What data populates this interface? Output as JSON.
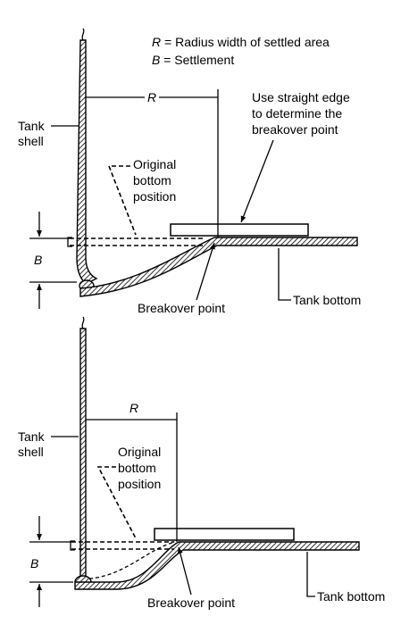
{
  "legend": {
    "r_symbol": "R",
    "r_text": " = Radius width of settled area",
    "b_symbol": "B",
    "b_text": " = Settlement"
  },
  "top": {
    "r_label": "R",
    "b_label": "B",
    "tank_shell": [
      "Tank",
      "shell"
    ],
    "original_bottom": [
      "Original",
      "bottom",
      "position"
    ],
    "straight_edge_note": [
      "Use straight edge",
      "to determine the",
      "breakover point"
    ],
    "breakover": "Breakover point",
    "tank_bottom": "Tank bottom"
  },
  "bottom": {
    "r_label": "R",
    "b_label": "B",
    "tank_shell": [
      "Tank",
      "shell"
    ],
    "original_bottom": [
      "Original",
      "bottom",
      "position"
    ],
    "breakover": "Breakover point",
    "tank_bottom": "Tank bottom"
  }
}
